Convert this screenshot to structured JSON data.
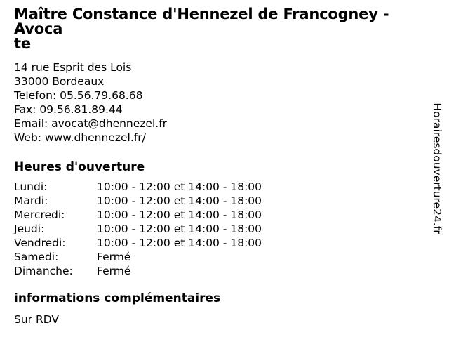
{
  "page": {
    "background_color": "#ffffff",
    "text_color": "#000000"
  },
  "header": {
    "title": "Maître Constance d'Hennezel de Francogney - Avocate",
    "title_wrap": {
      "line1": "Maître Constance d'Hennezel de Francogney - Avoca",
      "line2": "te"
    }
  },
  "contact": {
    "lines": [
      "14 rue Esprit des Lois",
      "33000 Bordeaux",
      "Telefon: 05.56.79.68.68",
      "Fax: 09.56.81.89.44",
      "Email: avocat@dhennezel.fr",
      "Web: www.dhennezel.fr/"
    ]
  },
  "hours": {
    "heading": "Heures d'ouverture",
    "rows": [
      {
        "day": "Lundi:",
        "time": "10:00 - 12:00 et 14:00 - 18:00"
      },
      {
        "day": "Mardi:",
        "time": "10:00 - 12:00 et 14:00 - 18:00"
      },
      {
        "day": "Mercredi:",
        "time": "10:00 - 12:00 et 14:00 - 18:00"
      },
      {
        "day": "Jeudi:",
        "time": "10:00 - 12:00 et 14:00 - 18:00"
      },
      {
        "day": "Vendredi:",
        "time": "10:00 - 12:00 et 14:00 - 18:00"
      },
      {
        "day": "Samedi:",
        "time": "Fermé"
      },
      {
        "day": "Dimanche:",
        "time": "Fermé"
      }
    ]
  },
  "additional_info": {
    "heading": "informations complémentaires",
    "text": "Sur RDV"
  },
  "watermark": {
    "site_name": "Horairesdouverture24.fr"
  }
}
